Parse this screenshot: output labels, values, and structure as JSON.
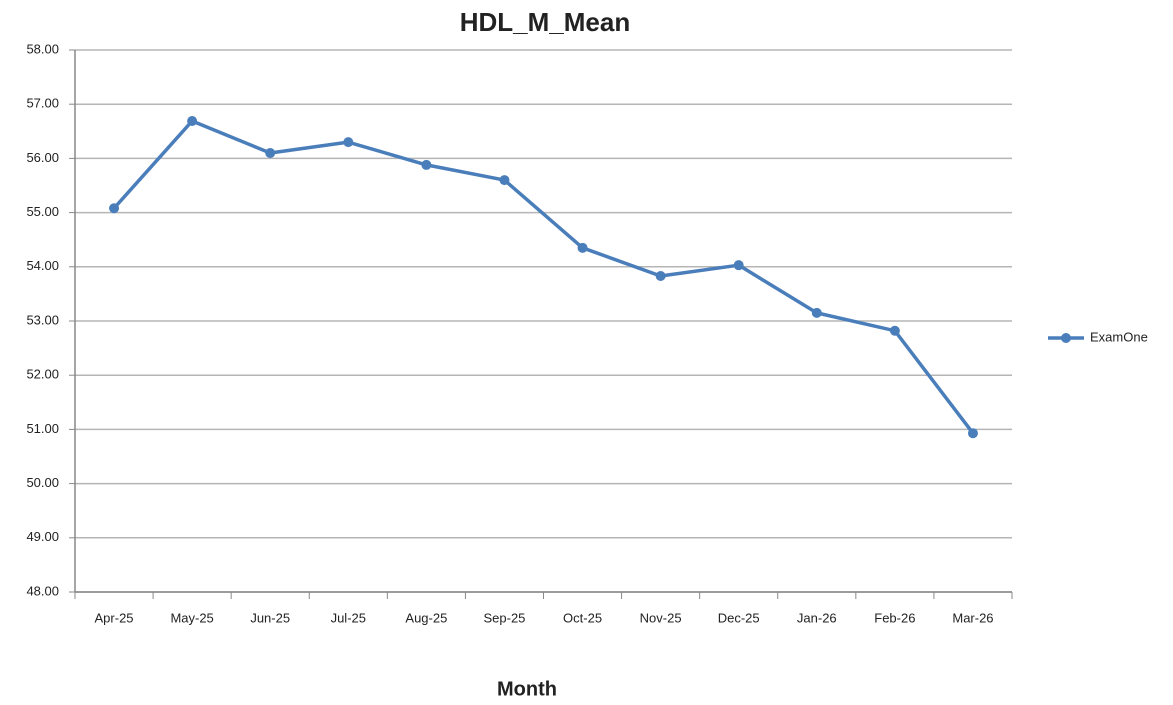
{
  "chart_data": {
    "type": "line",
    "title": "HDL_M_Mean",
    "x_label": "Month",
    "categories": [
      "Apr-25",
      "May-25",
      "Jun-25",
      "Jul-25",
      "Aug-25",
      "Sep-25",
      "Oct-25",
      "Nov-25",
      "Dec-25",
      "Jan-26",
      "Feb-26",
      "Mar-26"
    ],
    "series": [
      {
        "name": "ExamOne",
        "color": "#4a7ebb",
        "values": [
          55.08,
          56.69,
          56.1,
          56.3,
          55.88,
          55.6,
          54.35,
          53.83,
          54.03,
          53.15,
          52.82,
          50.93
        ]
      }
    ],
    "ylim": [
      48,
      58
    ],
    "yticks": [
      {
        "value": 48,
        "label": "48.00"
      },
      {
        "value": 49,
        "label": "49.00"
      },
      {
        "value": 50,
        "label": "50.00"
      },
      {
        "value": 51,
        "label": "51.00"
      },
      {
        "value": 52,
        "label": "52.00"
      },
      {
        "value": 53,
        "label": "53.00"
      },
      {
        "value": 54,
        "label": "54.00"
      },
      {
        "value": 55,
        "label": "55.00"
      },
      {
        "value": 56,
        "label": "56.00"
      },
      {
        "value": 57,
        "label": "57.00"
      },
      {
        "value": 58,
        "label": "58.00"
      }
    ],
    "grid": true,
    "legend": "right"
  }
}
